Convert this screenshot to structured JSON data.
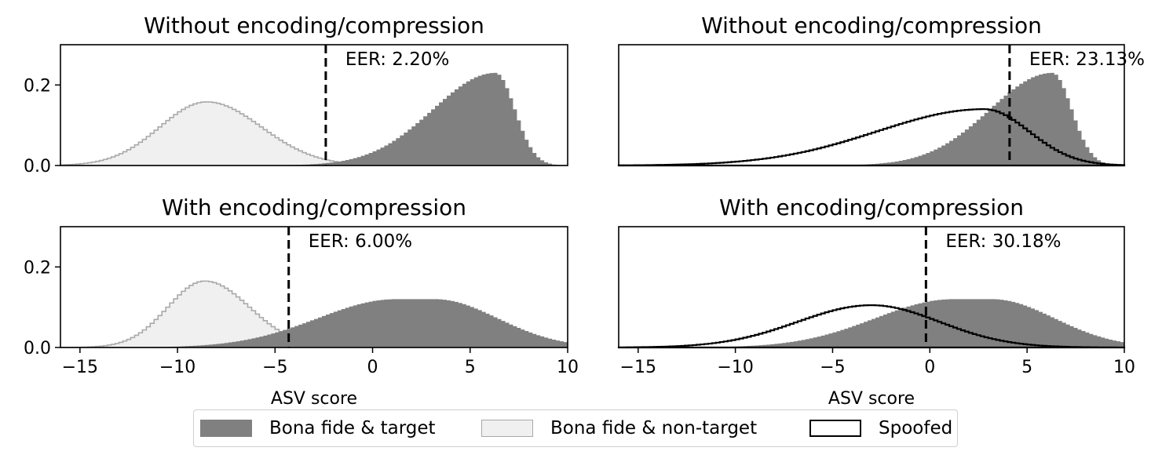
{
  "colors": {
    "bonafide_target_fill": "#808080",
    "nontarget_fill": "#f0f0f0",
    "nontarget_edge": "#a9a9a9",
    "spoofed_edge": "#000000"
  },
  "legend": {
    "items": [
      {
        "key": "target",
        "label": "Bona fide & target"
      },
      {
        "key": "nontarget",
        "label": "Bona fide & non-target"
      },
      {
        "key": "spoofed",
        "label": "Spoofed"
      }
    ]
  },
  "chart_data": [
    {
      "type": "histogram",
      "title": "Without encoding/compression",
      "xlim": [
        -16,
        10
      ],
      "ylim": [
        0,
        0.3
      ],
      "yticks": [
        "0.0",
        "0.2"
      ],
      "xticks": [],
      "xlabel": "",
      "eer_label": "EER: 2.20%",
      "eer_threshold": -2.4,
      "series": [
        {
          "key": "target",
          "shape": "skewed",
          "mu": 6.3,
          "sigL": 3.2,
          "sigR": 1.0,
          "peak": 0.23
        },
        {
          "key": "nontarget",
          "shape": "skewed",
          "mu": -8.5,
          "sigL": 2.4,
          "sigR": 2.8,
          "peak": 0.158
        }
      ]
    },
    {
      "type": "histogram",
      "title": "Without encoding/compression",
      "xlim": [
        -16,
        10
      ],
      "ylim": [
        0,
        0.3
      ],
      "yticks": [],
      "xticks": [],
      "xlabel": "",
      "eer_label": "EER: 23.13%",
      "eer_threshold": 4.1,
      "series": [
        {
          "key": "target",
          "shape": "skewed",
          "mu": 6.3,
          "sigL": 3.2,
          "sigR": 1.0,
          "peak": 0.23
        },
        {
          "key": "spoofed",
          "shape": "skewed",
          "mu": 2.8,
          "sigL": 5.5,
          "sigR": 2.3,
          "peak": 0.14
        }
      ]
    },
    {
      "type": "histogram",
      "title": "With encoding/compression",
      "xlim": [
        -16,
        10
      ],
      "ylim": [
        0,
        0.3
      ],
      "yticks": [
        "0.0",
        "0.2"
      ],
      "xticks": [
        "−15",
        "−10",
        "−5",
        "0",
        "5",
        "10"
      ],
      "xlabel": "ASV score",
      "eer_label": "EER: 6.00%",
      "eer_threshold": -4.3,
      "series": [
        {
          "key": "target",
          "shape": "plateau",
          "mu": 2.2,
          "sigL": 4.0,
          "sigR": 3.2,
          "peak": 0.12
        },
        {
          "key": "nontarget",
          "shape": "skewed",
          "mu": -8.6,
          "sigL": 1.9,
          "sigR": 2.3,
          "peak": 0.165
        }
      ]
    },
    {
      "type": "histogram",
      "title": "With encoding/compression",
      "xlim": [
        -16,
        10
      ],
      "ylim": [
        0,
        0.3
      ],
      "yticks": [],
      "xticks": [
        "−15",
        "−10",
        "−5",
        "0",
        "5",
        "10"
      ],
      "xlabel": "ASV score",
      "eer_label": "EER: 30.18%",
      "eer_threshold": -0.2,
      "series": [
        {
          "key": "target",
          "shape": "plateau",
          "mu": 2.2,
          "sigL": 4.0,
          "sigR": 3.2,
          "peak": 0.12
        },
        {
          "key": "spoofed",
          "shape": "skewed",
          "mu": -3.0,
          "sigL": 3.8,
          "sigR": 3.5,
          "peak": 0.105
        }
      ]
    }
  ]
}
